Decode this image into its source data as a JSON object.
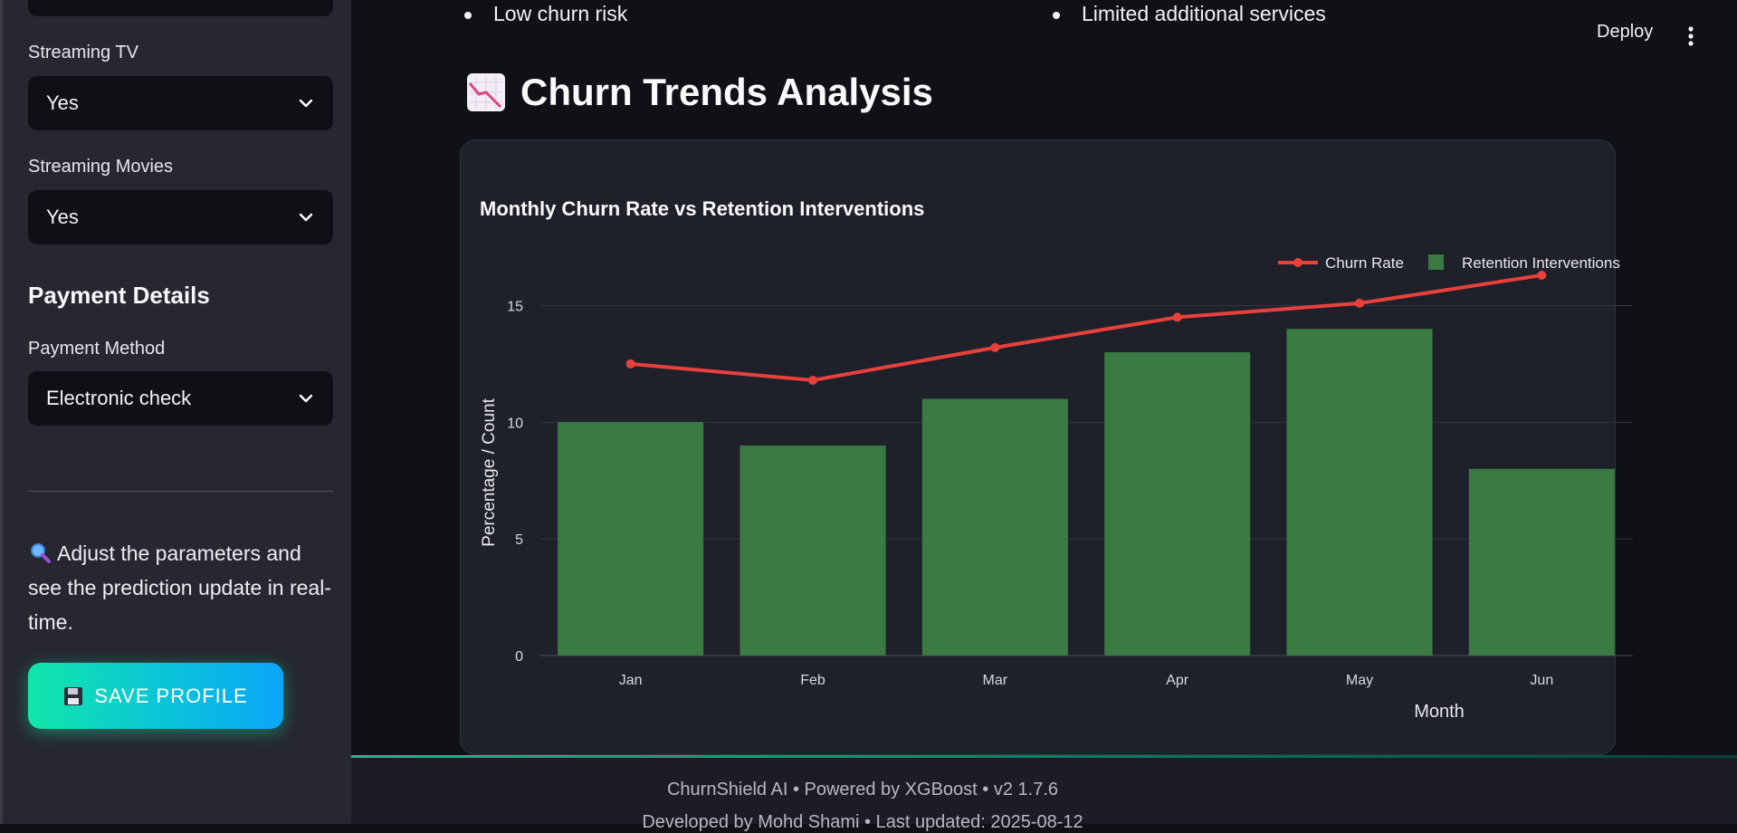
{
  "sidebar": {
    "streaming_tv": {
      "label": "Streaming TV",
      "value": "Yes"
    },
    "streaming_movies": {
      "label": "Streaming Movies",
      "value": "Yes"
    },
    "payment_heading": "Payment Details",
    "payment_method": {
      "label": "Payment Method",
      "value": "Electronic check"
    },
    "info_text": "Adjust the parameters and see the prediction update in real-time.",
    "save_button": "SAVE PROFILE"
  },
  "header": {
    "deploy": "Deploy"
  },
  "main": {
    "bullets": [
      "Low churn risk",
      "Limited additional services"
    ],
    "section_title": "Churn Trends Analysis"
  },
  "chart_data": {
    "type": "bar",
    "title": "Monthly Churn Rate vs Retention Interventions",
    "xlabel": "Month",
    "ylabel": "Percentage / Count",
    "categories": [
      "Jan",
      "Feb",
      "Mar",
      "Apr",
      "May",
      "Jun"
    ],
    "series": [
      {
        "name": "Churn Rate",
        "type": "line",
        "color": "#e8413b",
        "values": [
          12.5,
          11.8,
          13.2,
          14.5,
          15.1,
          16.3
        ]
      },
      {
        "name": "Retention Interventions",
        "type": "bar",
        "color": "#3a7a43",
        "values": [
          10,
          9,
          11,
          13,
          14,
          8
        ]
      }
    ],
    "ylim": [
      0,
      16.3
    ],
    "yticks": [
      0,
      5,
      10,
      15
    ],
    "grid": true,
    "legend": "top-right"
  },
  "footer": {
    "line1": "ChurnShield AI • Powered by XGBoost • v2 1.7.6",
    "line2": "Developed by Mohd Shami • Last updated: 2025-08-12"
  },
  "colors": {
    "accent": "#10e7a8",
    "background": "#0f1117",
    "sidebar": "#262730"
  },
  "icons": [
    "chevron-down-icon",
    "magnifier-icon",
    "floppy-disk-icon",
    "kebab-menu-icon",
    "chart-decreasing-icon"
  ]
}
